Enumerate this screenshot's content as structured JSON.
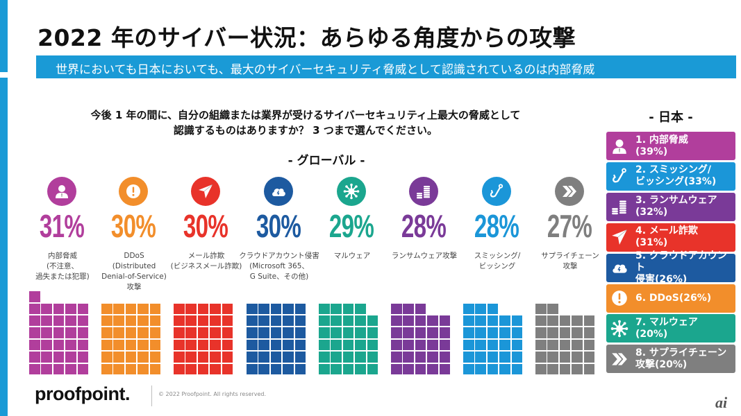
{
  "slide": {
    "title": "2022 年のサイバー状況：あらゆる角度からの攻撃",
    "subtitle": "世界においても日本においても、最大のサイバーセキュリティ脅威として認識されているのは内部脅威",
    "question_line1": "今後 1 年の間に、自分の組織または業界が受けるサイバーセキュリティ上最大の脅威として",
    "question_line2": "認識するものはありますか？ 3 つまで選んでください。"
  },
  "chart_data": [
    {
      "type": "bar",
      "title": "- グローバル -",
      "style": "waffle",
      "unit": "%",
      "categories": [
        "内部脅威（不注意、過失または犯罪）",
        "DDoS（Distributed Denial-of-Service）攻撃",
        "メール詐欺（ビジネスメール詐欺）",
        "クラウドアカウント侵害（Microsoft 365、G Suite、その他）",
        "マルウェア",
        "ランサムウェア攻撃",
        "スミッシング/ビッシング",
        "サプライチェーン攻撃"
      ],
      "values": [
        31,
        30,
        30,
        30,
        29,
        28,
        28,
        27
      ],
      "items": [
        {
          "pct": "31%",
          "value": 31,
          "label_lines": [
            "内部脅威",
            "(不注意、",
            "過失または犯罪)"
          ],
          "color": "#b13e9c",
          "icon": "person-icon"
        },
        {
          "pct": "30%",
          "value": 30,
          "label_lines": [
            "DDoS",
            "(Distributed",
            "Denial-of-Service)",
            "攻撃"
          ],
          "color": "#f28e2b",
          "icon": "exclamation-icon"
        },
        {
          "pct": "30%",
          "value": 30,
          "label_lines": [
            "メール詐欺",
            "(ビジネスメール詐欺)"
          ],
          "color": "#e8332a",
          "icon": "paper-plane-icon"
        },
        {
          "pct": "30%",
          "value": 30,
          "label_lines": [
            "クラウドアカウント侵害",
            "(Microsoft 365、",
            "G Suite、その他)"
          ],
          "color": "#1d5aa0",
          "icon": "cloud-icon"
        },
        {
          "pct": "29%",
          "value": 29,
          "label_lines": [
            "マルウェア"
          ],
          "color": "#1ba68e",
          "icon": "virus-icon"
        },
        {
          "pct": "28%",
          "value": 28,
          "label_lines": [
            "ランサムウェア攻撃"
          ],
          "color": "#7a3a98",
          "icon": "coins-icon"
        },
        {
          "pct": "28%",
          "value": 28,
          "label_lines": [
            "スミッシング/",
            "ビッシング"
          ],
          "color": "#1b96d8",
          "icon": "hook-icon"
        },
        {
          "pct": "27%",
          "value": 27,
          "label_lines": [
            "サプライチェーン",
            "攻撃"
          ],
          "color": "#7f7f7f",
          "icon": "chevrons-icon"
        }
      ]
    },
    {
      "type": "table",
      "title": "- 日本 -",
      "categories": [
        "内部脅威",
        "スミッシング/ビッシング",
        "ランサムウェア",
        "メール詐欺",
        "クラウドアカウント侵害",
        "DDoS",
        "マルウェア",
        "サプライチェーン攻撃"
      ],
      "values": [
        39,
        33,
        32,
        31,
        26,
        26,
        20,
        20
      ],
      "items": [
        {
          "line1": "1. 内部脅威",
          "line2": "(39%)",
          "value": 39,
          "color": "#b13e9c",
          "icon": "person-icon"
        },
        {
          "line1": "2. スミッシング/",
          "line2": "ビッシング(33%)",
          "value": 33,
          "color": "#1b96d8",
          "icon": "hook-icon"
        },
        {
          "line1": "3. ランサムウェア",
          "line2": "(32%)",
          "value": 32,
          "color": "#7a3a98",
          "icon": "coins-icon"
        },
        {
          "line1": "4. メール詐欺",
          "line2": "(31%)",
          "value": 31,
          "color": "#e8332a",
          "icon": "paper-plane-icon"
        },
        {
          "line1": "5. クラウドアカウント",
          "line2": "侵害(26%)",
          "value": 26,
          "color": "#1d5aa0",
          "icon": "cloud-icon"
        },
        {
          "line1": "6. DDoS(26%)",
          "line2": "",
          "value": 26,
          "color": "#f28e2b",
          "icon": "exclamation-icon"
        },
        {
          "line1": "7. マルウェア",
          "line2": "(20%)",
          "value": 20,
          "color": "#1ba68e",
          "icon": "virus-icon"
        },
        {
          "line1": "8. サプライチェーン",
          "line2": "攻撃(20%)",
          "value": 20,
          "color": "#7f7f7f",
          "icon": "chevrons-icon"
        }
      ]
    }
  ],
  "footer": {
    "logo": "proofpoint.",
    "copyright": "© 2022  Proofpoint. All rights reserved.",
    "watermark": "ai"
  },
  "colors": {
    "accent_blue": "#1a9ad6"
  }
}
